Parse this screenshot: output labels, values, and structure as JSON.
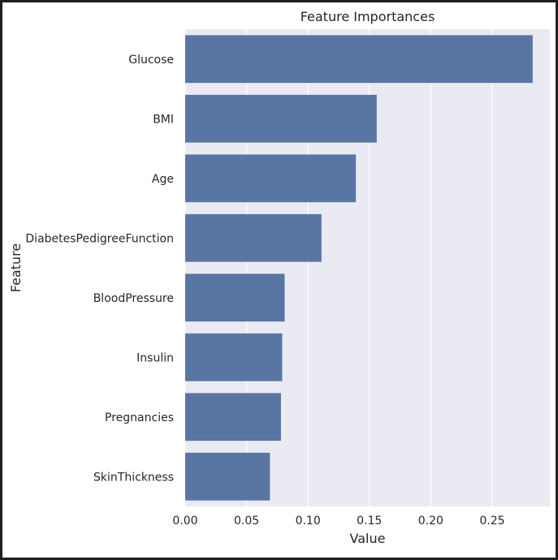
{
  "chart_data": {
    "type": "bar",
    "orientation": "horizontal",
    "title": "Feature Importances",
    "xlabel": "Value",
    "ylabel": "Feature",
    "categories": [
      "Glucose",
      "BMI",
      "Age",
      "DiabetesPedigreeFunction",
      "BloodPressure",
      "Insulin",
      "Pregnancies",
      "SkinThickness"
    ],
    "values": [
      0.283,
      0.156,
      0.139,
      0.111,
      0.081,
      0.079,
      0.078,
      0.069
    ],
    "xlim": [
      0,
      0.297
    ],
    "xticks": [
      0.0,
      0.05,
      0.1,
      0.15,
      0.2,
      0.25
    ],
    "xtick_labels": [
      "0.00",
      "0.05",
      "0.10",
      "0.15",
      "0.20",
      "0.25"
    ],
    "grid": true,
    "bar_color": "#5975a4",
    "plot_background": "#eaeaf2",
    "grid_color": "#ffffff"
  }
}
